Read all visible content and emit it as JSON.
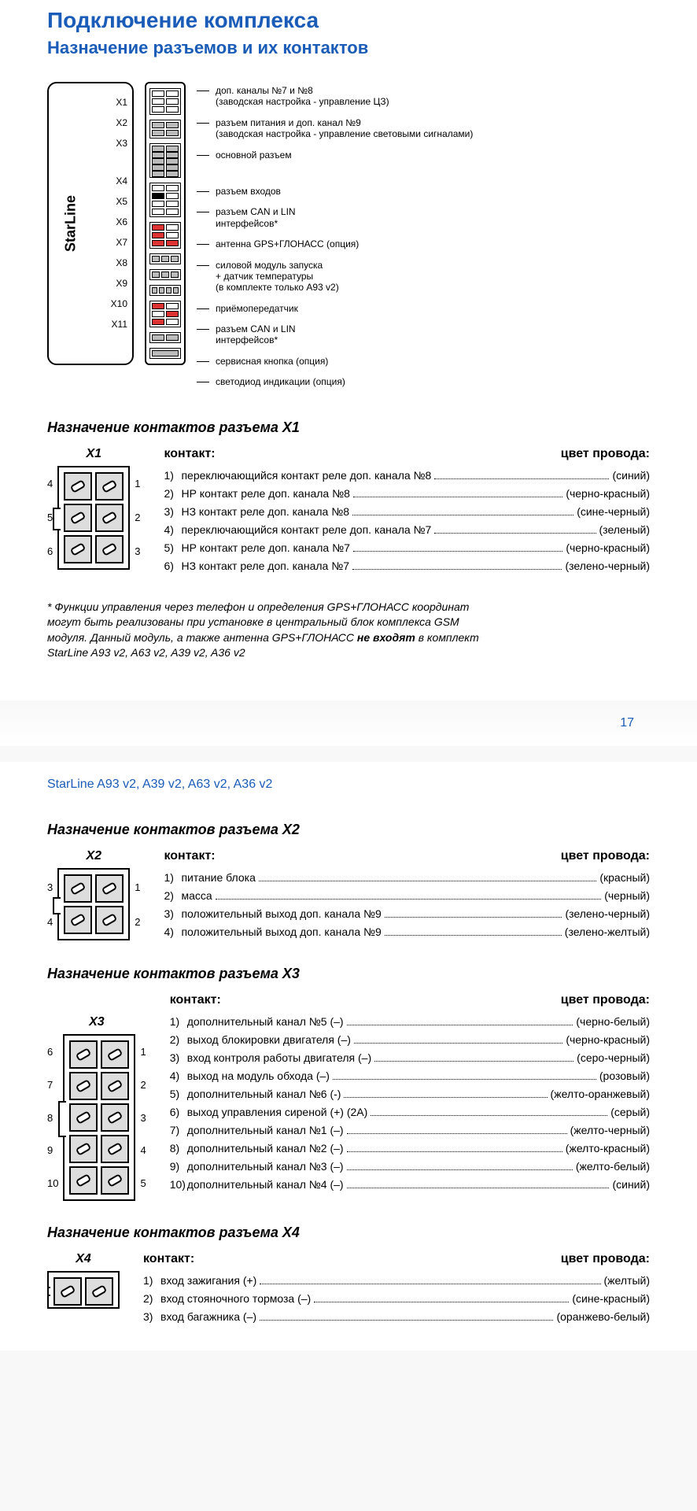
{
  "header": {
    "title_partial": "Подключение комплекса",
    "subtitle": "Назначение разъемов и их контактов"
  },
  "device": {
    "brand": "StarLine",
    "connectors": [
      {
        "label": "X1",
        "desc_l1": "доп. каналы №7 и №8",
        "desc_l2": "(заводская настройка - управление ЦЗ)"
      },
      {
        "label": "X2",
        "desc_l1": "разъем питания и доп. канал №9",
        "desc_l2": "(заводская настройка - управление световыми сигналами)"
      },
      {
        "label": "X3",
        "desc_l1": "основной разъем",
        "desc_l2": ""
      },
      {
        "label": "X4",
        "desc_l1": "разъем входов",
        "desc_l2": ""
      },
      {
        "label": "X5",
        "desc_l1": "разъем  CAN и LIN",
        "desc_l2": "интерфейсов*"
      },
      {
        "label": "X6",
        "desc_l1": "антенна GPS+ГЛОНАСС (опция)",
        "desc_l2": ""
      },
      {
        "label": "X7",
        "desc_l1": "силовой модуль запуска",
        "desc_l2": "+ датчик температуры",
        "desc_l3": "(в комплекте только A93 v2)"
      },
      {
        "label": "X8",
        "desc_l1": "приёмопередатчик",
        "desc_l2": ""
      },
      {
        "label": "X9",
        "desc_l1": "разъем  CAN и LIN",
        "desc_l2": "интерфейсов*"
      },
      {
        "label": "X10",
        "desc_l1": "сервисная кнопка (опция)",
        "desc_l2": ""
      },
      {
        "label": "X11",
        "desc_l1": "светодиод индикации (опция)",
        "desc_l2": ""
      }
    ]
  },
  "x1": {
    "title": "Назначение контактов разъема  X1",
    "name": "X1",
    "pins_hdr_contact": "контакт:",
    "pins_hdr_color": "цвет провода:",
    "left_nums": [
      "4",
      "5",
      "6"
    ],
    "right_nums": [
      "1",
      "2",
      "3"
    ],
    "rows": [
      {
        "n": "1)",
        "d": "переключающийся контакт реле доп. канала №8",
        "c": "(синий)"
      },
      {
        "n": "2)",
        "d": "НР контакт реле доп. канала №8",
        "c": "(черно-красный)"
      },
      {
        "n": "3)",
        "d": "НЗ контакт реле доп. канала №8",
        "c": "(сине-черный)"
      },
      {
        "n": "4)",
        "d": "переключающийся контакт реле доп. канала №7",
        "c": "(зеленый)"
      },
      {
        "n": "5)",
        "d": "НР контакт реле доп. канала №7",
        "c": "(черно-красный)"
      },
      {
        "n": "6)",
        "d": "НЗ контакт реле доп. канала №7",
        "c": "(зелено-черный)"
      }
    ]
  },
  "footnote": {
    "l1": "* Функции управления через телефон и определения GPS+ГЛОНАСС координат",
    "l2": "могут быть реализованы при установке в центральный блок комплекса GSM",
    "l3_a": "модуля. Данный модуль, а также антенна GPS+ГЛОНАСС ",
    "l3_b": "не входят",
    "l3_c": " в комплект",
    "l4": "StarLine A93 v2, A63 v2, A39 v2, A36 v2"
  },
  "page_number": "17",
  "models_header": "StarLine A93 v2, A39 v2, A63 v2, A36 v2",
  "x2": {
    "title": "Назначение контактов разъема  X2",
    "name": "X2",
    "left_nums": [
      "3",
      "4"
    ],
    "right_nums": [
      "1",
      "2"
    ],
    "rows": [
      {
        "n": "1)",
        "d": "питание блока",
        "c": "(красный)"
      },
      {
        "n": "2)",
        "d": "масса",
        "c": "(черный)"
      },
      {
        "n": "3)",
        "d": "положительный выход доп. канала №9",
        "c": "(зелено-черный)"
      },
      {
        "n": "4)",
        "d": "положительный выход доп. канала №9",
        "c": "(зелено-желтый)"
      }
    ]
  },
  "x3": {
    "title": "Назначение контактов разъема  X3",
    "name": "X3",
    "left_nums": [
      "6",
      "7",
      "8",
      "9",
      "10"
    ],
    "right_nums": [
      "1",
      "2",
      "3",
      "4",
      "5"
    ],
    "rows": [
      {
        "n": "1)",
        "d": "дополнительный канал №5  (–)",
        "c": "(черно-белый)"
      },
      {
        "n": "2)",
        "d": "выход блокировки двигателя (–)",
        "c": "(черно-красный)"
      },
      {
        "n": "3)",
        "d": "вход контроля работы двигателя (–)",
        "c": "(серо-черный)"
      },
      {
        "n": "4)",
        "d": "выход на модуль обхода  (–)",
        "c": "(розовый)"
      },
      {
        "n": "5)",
        "d": "дополнительный канал №6 (-)",
        "c": "(желто-оранжевый)"
      },
      {
        "n": "6)",
        "d": "выход управления сиреной (+) (2А)",
        "c": "(серый)"
      },
      {
        "n": "7)",
        "d": "дополнительный канал №1  (–)",
        "c": "(желто-черный)"
      },
      {
        "n": "8)",
        "d": "дополнительный канал №2  (–)",
        "c": "(желто-красный)"
      },
      {
        "n": "9)",
        "d": "дополнительный канал №3  (–)",
        "c": "(желто-белый)"
      },
      {
        "n": "10)",
        "d": "дополнительный канал №4  (–)",
        "c": "(синий)"
      }
    ]
  },
  "x4": {
    "title": "Назначение контактов разъема  X4",
    "name": "X4",
    "rows": [
      {
        "n": "1)",
        "d": "вход зажигания  (+)",
        "c": "(желтый)"
      },
      {
        "n": "2)",
        "d": "вход стояночного тормоза (–)",
        "c": "(сине-красный)"
      },
      {
        "n": "3)",
        "d": "вход багажника (–)",
        "c": "(оранжево-белый)"
      }
    ]
  },
  "labels": {
    "contact": "контакт:",
    "wire_color": "цвет провода:"
  }
}
